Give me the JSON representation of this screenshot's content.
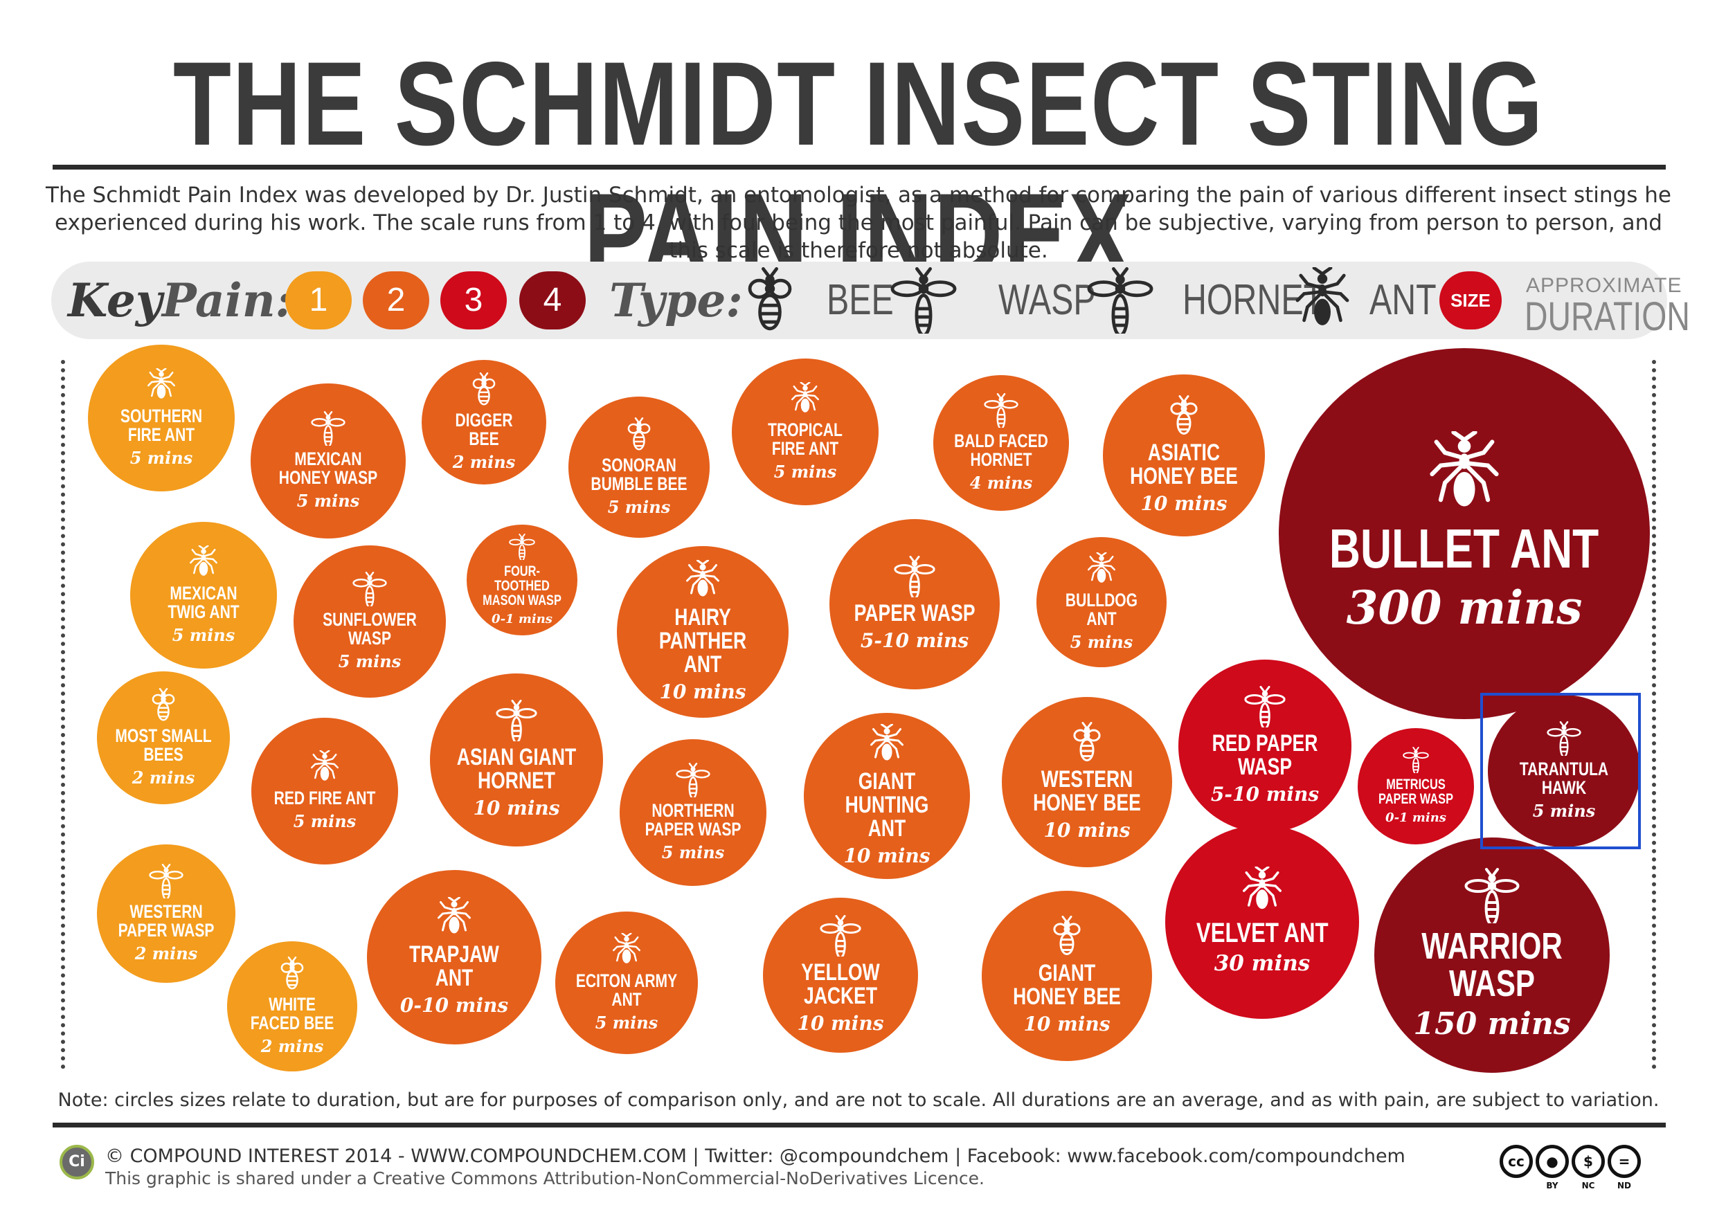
{
  "title": "THE SCHMIDT INSECT STING PAIN INDEX",
  "intro": "The Schmidt Pain Index was developed by Dr. Justin Schmidt, an entomologist, as a method for comparing the pain of various different insect stings he experienced during his work. The scale runs from 1 to 4, with four being the most painful. Pain can be subjective, varying from person to person, and this scale is therefore not absolute.",
  "key": {
    "key_label": "Key",
    "pain_label": "Pain:",
    "levels": [
      "1",
      "2",
      "3",
      "4"
    ],
    "type_label": "Type:",
    "types": [
      "BEE",
      "WASP",
      "HORNET",
      "ANT"
    ],
    "size_label": "SIZE",
    "approx_label": "APPROXIMATE",
    "duration_label": "DURATION"
  },
  "colors": {
    "pain1": "#f39c1d",
    "pain2": "#e5601b",
    "pain3": "#cf0a1b",
    "pain4": "#8d0d17"
  },
  "insects": [
    {
      "name": "SOUTHERN FIRE ANT",
      "duration": "5 mins",
      "pain": 1,
      "type": "ant"
    },
    {
      "name": "MEXICAN HONEY WASP",
      "duration": "5 mins",
      "pain": 2,
      "type": "wasp"
    },
    {
      "name": "DIGGER BEE",
      "duration": "2 mins",
      "pain": 2,
      "type": "bee"
    },
    {
      "name": "SONORAN BUMBLE BEE",
      "duration": "5 mins",
      "pain": 2,
      "type": "bee"
    },
    {
      "name": "TROPICAL FIRE ANT",
      "duration": "5 mins",
      "pain": 2,
      "type": "ant"
    },
    {
      "name": "BALD FACED HORNET",
      "duration": "4 mins",
      "pain": 2,
      "type": "hornet"
    },
    {
      "name": "ASIATIC HONEY BEE",
      "duration": "10 mins",
      "pain": 2,
      "type": "bee"
    },
    {
      "name": "BULLET ANT",
      "duration": "300 mins",
      "pain": 4,
      "type": "ant"
    },
    {
      "name": "MEXICAN TWIG ANT",
      "duration": "5 mins",
      "pain": 1,
      "type": "ant"
    },
    {
      "name": "SUNFLOWER WASP",
      "duration": "5 mins",
      "pain": 2,
      "type": "wasp"
    },
    {
      "name": "FOUR-TOOTHED MASON WASP",
      "duration": "0-1 mins",
      "pain": 2,
      "type": "wasp"
    },
    {
      "name": "HAIRY PANTHER ANT",
      "duration": "10 mins",
      "pain": 2,
      "type": "ant"
    },
    {
      "name": "PAPER WASP",
      "duration": "5-10 mins",
      "pain": 2,
      "type": "wasp"
    },
    {
      "name": "BULLDOG ANT",
      "duration": "5 mins",
      "pain": 2,
      "type": "ant"
    },
    {
      "name": "MOST SMALL BEES",
      "duration": "2 mins",
      "pain": 1,
      "type": "bee"
    },
    {
      "name": "RED FIRE ANT",
      "duration": "5 mins",
      "pain": 2,
      "type": "ant"
    },
    {
      "name": "ASIAN GIANT HORNET",
      "duration": "10 mins",
      "pain": 2,
      "type": "hornet"
    },
    {
      "name": "NORTHERN PAPER WASP",
      "duration": "5 mins",
      "pain": 2,
      "type": "wasp"
    },
    {
      "name": "GIANT HUNTING ANT",
      "duration": "10 mins",
      "pain": 2,
      "type": "ant"
    },
    {
      "name": "WESTERN HONEY BEE",
      "duration": "10 mins",
      "pain": 2,
      "type": "bee"
    },
    {
      "name": "RED PAPER WASP",
      "duration": "5-10 mins",
      "pain": 3,
      "type": "wasp"
    },
    {
      "name": "METRICUS PAPER WASP",
      "duration": "0-1 mins",
      "pain": 3,
      "type": "wasp"
    },
    {
      "name": "TARANTULA HAWK",
      "duration": "5 mins",
      "pain": 4,
      "type": "wasp"
    },
    {
      "name": "WESTERN PAPER WASP",
      "duration": "2 mins",
      "pain": 1,
      "type": "wasp"
    },
    {
      "name": "WHITE FACED BEE",
      "duration": "2 mins",
      "pain": 1,
      "type": "bee"
    },
    {
      "name": "TRAPJAW ANT",
      "duration": "0-10 mins",
      "pain": 2,
      "type": "ant"
    },
    {
      "name": "ECITON ARMY ANT",
      "duration": "5 mins",
      "pain": 2,
      "type": "ant"
    },
    {
      "name": "YELLOW JACKET",
      "duration": "10 mins",
      "pain": 2,
      "type": "wasp"
    },
    {
      "name": "GIANT HONEY BEE",
      "duration": "10 mins",
      "pain": 2,
      "type": "bee"
    },
    {
      "name": "VELVET ANT",
      "duration": "30 mins",
      "pain": 3,
      "type": "ant"
    },
    {
      "name": "WARRIOR WASP",
      "duration": "150 mins",
      "pain": 4,
      "type": "wasp"
    }
  ],
  "note": "Note: circles sizes relate to duration, but are for purposes of comparison only, and are not to scale. All durations are an average, and as with pain, are subject to variation.",
  "footer": {
    "logo_text": "Ci",
    "credit": "© COMPOUND INTEREST 2014 - WWW.COMPOUNDCHEM.COM | Twitter: @compoundchem | Facebook: www.facebook.com/compoundchem",
    "licence": "This graphic is shared under a Creative Commons Attribution-NonCommercial-NoDerivatives Licence.",
    "cc_badges": [
      "cc",
      "BY",
      "NC",
      "ND"
    ]
  }
}
